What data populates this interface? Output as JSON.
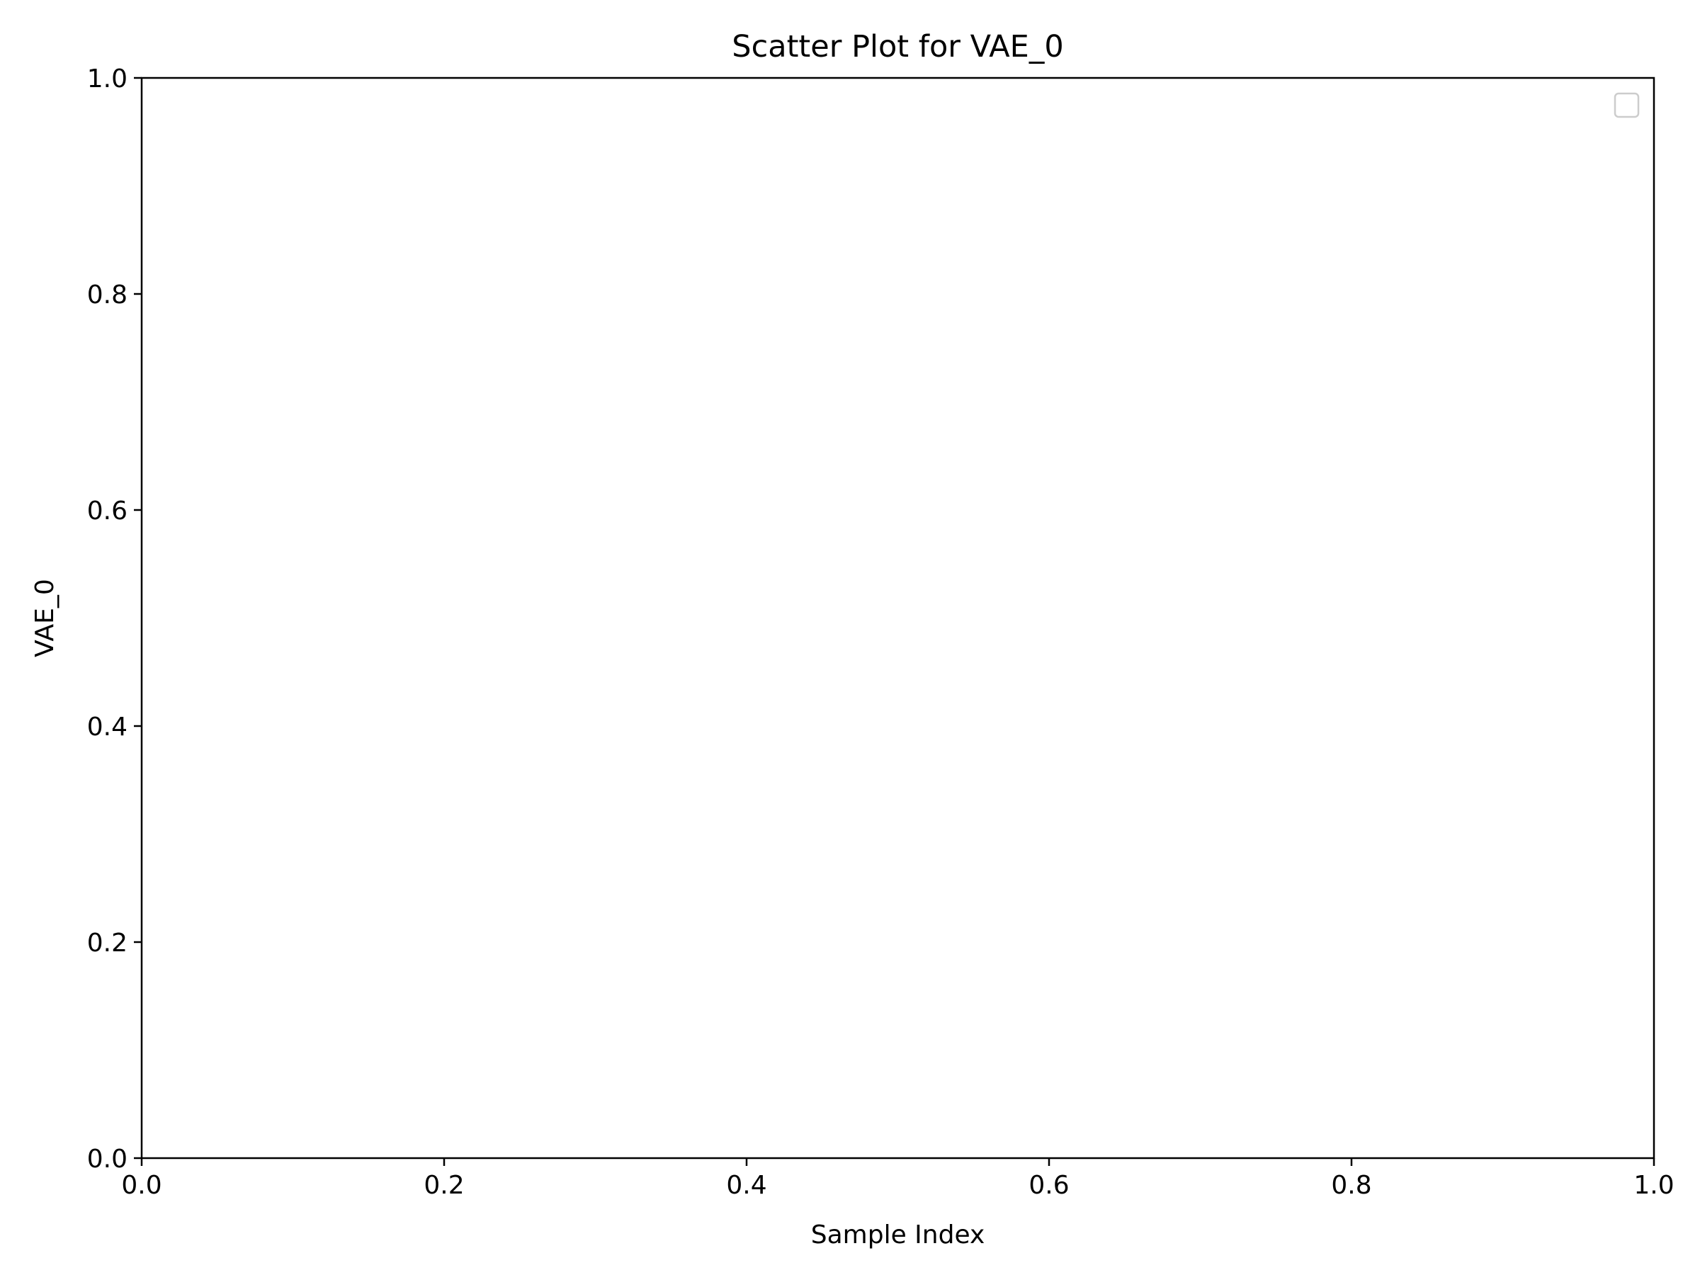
{
  "chart_data": {
    "type": "scatter",
    "title": "Scatter Plot for VAE_0",
    "xlabel": "Sample Index",
    "ylabel": "VAE_0",
    "xlim": [
      0.0,
      1.0
    ],
    "ylim": [
      0.0,
      1.0
    ],
    "x_ticks": [
      "0.0",
      "0.2",
      "0.4",
      "0.6",
      "0.8",
      "1.0"
    ],
    "y_ticks": [
      "0.0",
      "0.2",
      "0.4",
      "0.6",
      "0.8",
      "1.0"
    ],
    "series": [],
    "grid": false,
    "legend": {
      "placement": "upper right",
      "entries": []
    },
    "colors": {
      "axis": "#000000",
      "background": "#ffffff",
      "legend_border": "#cccccc"
    }
  }
}
